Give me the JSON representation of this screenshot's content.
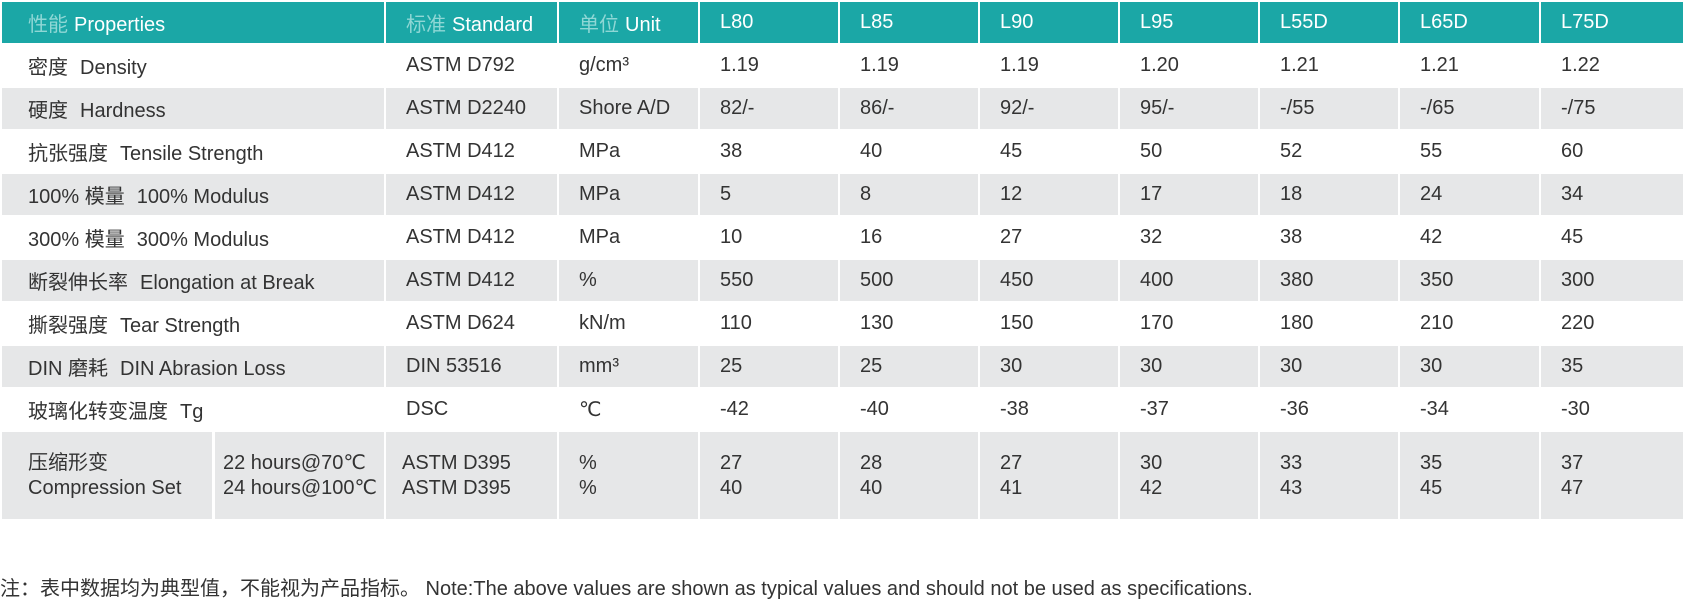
{
  "header": [
    {
      "zh": "性能",
      "en": "Properties"
    },
    {
      "zh": "标准",
      "en": "Standard"
    },
    {
      "zh": "单位",
      "en": "Unit"
    },
    "L80",
    "L85",
    "L90",
    "L95",
    "L55D",
    "L65D",
    "L75D"
  ],
  "rows": [
    {
      "zh": "密度",
      "en": "Density",
      "standard": "ASTM D792",
      "unit": "g/cm³",
      "values": [
        "1.19",
        "1.19",
        "1.19",
        "1.20",
        "1.21",
        "1.21",
        "1.22"
      ]
    },
    {
      "zh": "硬度",
      "en": "Hardness",
      "standard": "ASTM D2240",
      "unit": "Shore A/D",
      "values": [
        "82/-",
        "86/-",
        "92/-",
        "95/-",
        "-/55",
        "-/65",
        "-/75"
      ]
    },
    {
      "zh": "抗张强度",
      "en": "Tensile Strength",
      "standard": "ASTM D412",
      "unit": "MPa",
      "values": [
        "38",
        "40",
        "45",
        "50",
        "52",
        "55",
        "60"
      ]
    },
    {
      "zh": "100% 模量",
      "en": "100% Modulus",
      "standard": "ASTM D412",
      "unit": "MPa",
      "values": [
        "5",
        "8",
        "12",
        "17",
        "18",
        "24",
        "34"
      ]
    },
    {
      "zh": "300% 模量",
      "en": "300% Modulus",
      "standard": "ASTM D412",
      "unit": "MPa",
      "values": [
        "10",
        "16",
        "27",
        "32",
        "38",
        "42",
        "45"
      ]
    },
    {
      "zh": "断裂伸长率",
      "en": "Elongation at Break",
      "standard": "ASTM D412",
      "unit": "%",
      "values": [
        "550",
        "500",
        "450",
        "400",
        "380",
        "350",
        "300"
      ]
    },
    {
      "zh": "撕裂强度",
      "en": "Tear Strength",
      "standard": "ASTM D624",
      "unit": "kN/m",
      "values": [
        "110",
        "130",
        "150",
        "170",
        "180",
        "210",
        "220"
      ]
    },
    {
      "zh": "DIN 磨耗",
      "en": "DIN Abrasion Loss",
      "standard": "DIN 53516",
      "unit": "mm³",
      "values": [
        "25",
        "25",
        "30",
        "30",
        "30",
        "30",
        "35"
      ]
    },
    {
      "zh": "玻璃化转变温度",
      "en": "Tg",
      "standard": "DSC",
      "unit": "℃",
      "values": [
        "-42",
        "-40",
        "-38",
        "-37",
        "-36",
        "-34",
        "-30"
      ]
    }
  ],
  "compression": {
    "zh": "压缩形变",
    "en": "Compression Set",
    "sub": [
      {
        "condition": "22 hours@70℃",
        "standard": "ASTM D395",
        "unit": "%",
        "values": [
          "27",
          "28",
          "27",
          "30",
          "33",
          "35",
          "37"
        ]
      },
      {
        "condition": "24 hours@100℃",
        "standard": "ASTM D395",
        "unit": "%",
        "values": [
          "40",
          "40",
          "41",
          "42",
          "43",
          "45",
          "47"
        ]
      }
    ]
  },
  "note": "注：表中数据均为典型值，不能视为产品指标。 Note:The above values are shown as typical values and should not be used as specifications."
}
